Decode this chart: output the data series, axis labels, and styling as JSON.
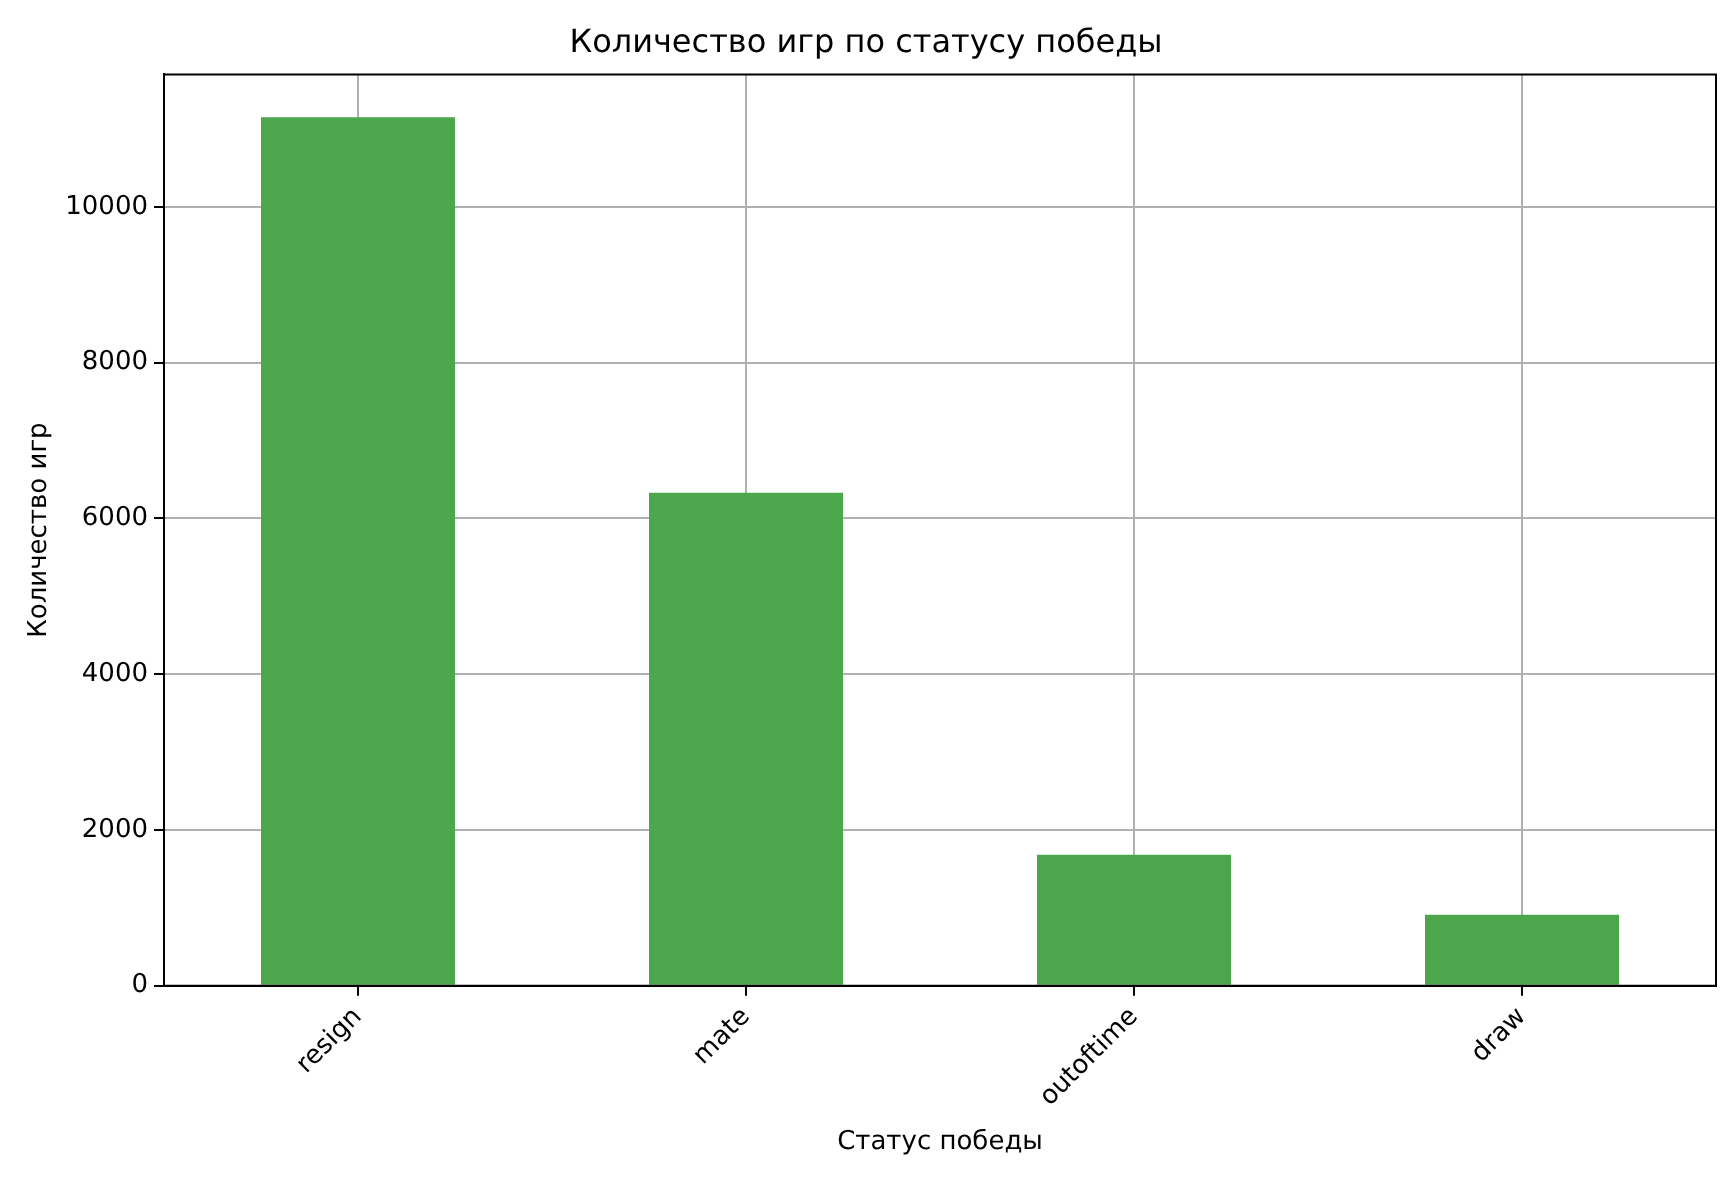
{
  "chart_data": {
    "type": "bar",
    "title": "Количество игр по статусу победы",
    "xlabel": "Статус победы",
    "ylabel": "Количество игр",
    "categories": [
      "resign",
      "mate",
      "outoftime",
      "draw"
    ],
    "values": [
      11150,
      6330,
      1680,
      910
    ],
    "color": "#4ca64c",
    "ylim": [
      0,
      11700
    ],
    "yticks": [
      0,
      2000,
      4000,
      6000,
      8000,
      10000
    ],
    "grid": true
  }
}
